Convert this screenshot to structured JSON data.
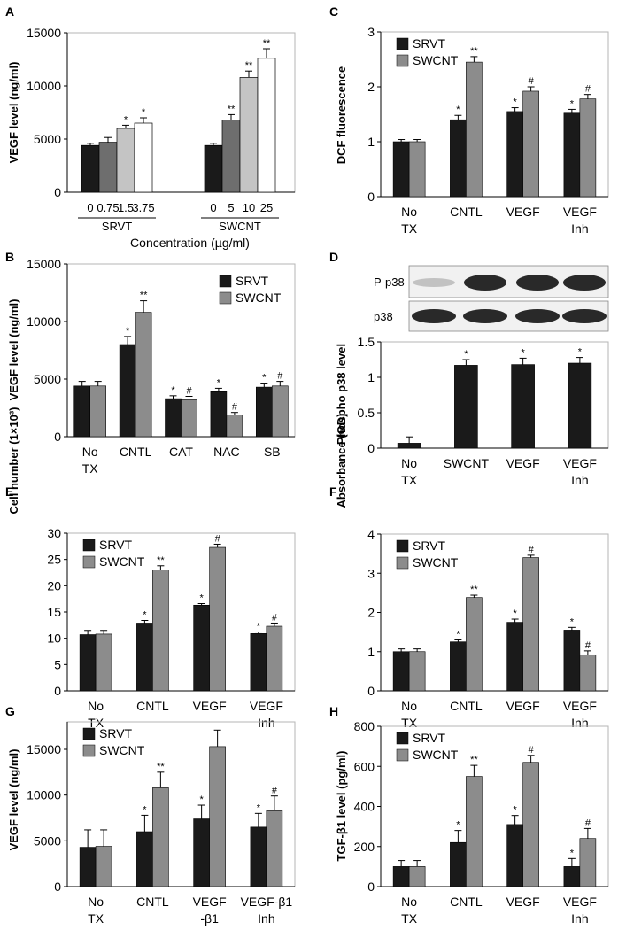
{
  "colors": {
    "srvt": "#1a1a1a",
    "swcnt": "#8c8c8c",
    "a_grays": [
      "#1a1a1a",
      "#6e6e6e",
      "#c4c4c4",
      "#ffffff"
    ]
  },
  "legend": {
    "srvt": "SRVT",
    "swcnt": "SWCNT"
  },
  "chart_data": [
    {
      "panel": "A",
      "type": "bar",
      "ylabel": "VEGF level (ng/ml)",
      "xlabel": "Concentration (µg/ml)",
      "ylim": [
        0,
        15000
      ],
      "yticks": [
        0,
        5000,
        10000,
        15000
      ],
      "groups": [
        {
          "name": "SRVT",
          "conc_labels": [
            "0",
            "0.75",
            "1.5",
            "3.75"
          ],
          "values": [
            4400,
            4700,
            6000,
            6500
          ],
          "errors": [
            200,
            450,
            300,
            500
          ],
          "marks": [
            "",
            "",
            "*",
            "*"
          ]
        },
        {
          "name": "SWCNT",
          "conc_labels": [
            "0",
            "5",
            "10",
            "25"
          ],
          "values": [
            4400,
            6800,
            10800,
            12600
          ],
          "errors": [
            200,
            500,
            600,
            900
          ],
          "marks": [
            "",
            "**",
            "**",
            "**"
          ]
        }
      ]
    },
    {
      "panel": "B",
      "type": "bar",
      "ylabel": "VEGF level (ng/ml)",
      "ylim": [
        0,
        15000
      ],
      "yticks": [
        0,
        5000,
        10000,
        15000
      ],
      "categories": [
        [
          "No",
          "TX"
        ],
        [
          "CNTL"
        ],
        [
          "CAT"
        ],
        [
          "NAC"
        ],
        [
          "SB"
        ]
      ],
      "legend_pos": "top-right",
      "series": [
        {
          "name": "SRVT",
          "values": [
            4400,
            8000,
            3300,
            3900,
            4300
          ],
          "errors": [
            400,
            700,
            250,
            300,
            350
          ],
          "marks": [
            "",
            "*",
            "*",
            "*",
            "*"
          ]
        },
        {
          "name": "SWCNT",
          "values": [
            4400,
            10800,
            3200,
            1900,
            4400
          ],
          "errors": [
            400,
            1000,
            300,
            200,
            400
          ],
          "marks": [
            "",
            "**",
            "#",
            "#",
            "#"
          ]
        }
      ]
    },
    {
      "panel": "C",
      "type": "bar",
      "ylabel": "DCF fluorescence",
      "ylim": [
        0,
        3
      ],
      "yticks": [
        0,
        1,
        2,
        3
      ],
      "categories": [
        [
          "No",
          "TX"
        ],
        [
          "CNTL"
        ],
        [
          "VEGF"
        ],
        [
          "VEGF",
          "Inh"
        ]
      ],
      "legend_pos": "top-left",
      "series": [
        {
          "name": "SRVT",
          "values": [
            1.0,
            1.4,
            1.55,
            1.52
          ],
          "errors": [
            0.04,
            0.08,
            0.07,
            0.07
          ],
          "marks": [
            "",
            "*",
            "*",
            "*"
          ]
        },
        {
          "name": "SWCNT",
          "values": [
            1.0,
            2.45,
            1.92,
            1.78
          ],
          "errors": [
            0.04,
            0.1,
            0.08,
            0.08
          ],
          "marks": [
            "",
            "**",
            "#",
            "#"
          ]
        }
      ]
    },
    {
      "panel": "D",
      "type": "bar",
      "ylabel": "Phospho p38 level",
      "ylim": [
        0,
        1.5
      ],
      "yticks": [
        0,
        0.5,
        1,
        1.5
      ],
      "blot_labels": [
        "P-p38",
        "p38"
      ],
      "categories": [
        [
          "No",
          "TX"
        ],
        [
          "SWCNT"
        ],
        [
          "VEGF"
        ],
        [
          "VEGF",
          "Inh"
        ]
      ],
      "series": [
        {
          "name": "Phospho p38",
          "values": [
            0.07,
            1.17,
            1.18,
            1.2
          ],
          "errors": [
            0.09,
            0.08,
            0.09,
            0.08
          ],
          "marks": [
            "",
            "*",
            "*",
            "*"
          ]
        }
      ]
    },
    {
      "panel": "E",
      "type": "bar",
      "ylabel": "Cell number (1×10³)",
      "ylim": [
        0,
        30
      ],
      "yticks": [
        0,
        5,
        10,
        15,
        20,
        25,
        30
      ],
      "categories": [
        [
          "No",
          "TX"
        ],
        [
          "CNTL"
        ],
        [
          "VEGF"
        ],
        [
          "VEGF",
          "Inh"
        ]
      ],
      "legend_pos": "top-left",
      "series": [
        {
          "name": "SRVT",
          "values": [
            10.7,
            12.9,
            16.3,
            10.9
          ],
          "errors": [
            0.8,
            0.5,
            0.3,
            0.3
          ],
          "marks": [
            "",
            "*",
            "*",
            "*"
          ]
        },
        {
          "name": "SWCNT",
          "values": [
            10.8,
            23.0,
            27.3,
            12.3
          ],
          "errors": [
            0.7,
            0.8,
            0.6,
            0.6
          ],
          "marks": [
            "",
            "**",
            "#",
            "#"
          ]
        }
      ]
    },
    {
      "panel": "F",
      "type": "bar",
      "ylabel": "Absorbance (OD)",
      "ylim": [
        0,
        4
      ],
      "yticks": [
        0,
        1,
        2,
        3,
        4
      ],
      "categories": [
        [
          "No",
          "TX"
        ],
        [
          "CNTL"
        ],
        [
          "VEGF"
        ],
        [
          "VEGF",
          "Inh"
        ]
      ],
      "legend_pos": "top-left",
      "series": [
        {
          "name": "SRVT",
          "values": [
            1.0,
            1.25,
            1.75,
            1.55
          ],
          "errors": [
            0.07,
            0.05,
            0.08,
            0.07
          ],
          "marks": [
            "",
            "*",
            "*",
            "*"
          ]
        },
        {
          "name": "SWCNT",
          "values": [
            1.0,
            2.38,
            3.4,
            0.92
          ],
          "errors": [
            0.07,
            0.06,
            0.06,
            0.1
          ],
          "marks": [
            "",
            "**",
            "#",
            "#"
          ]
        }
      ]
    },
    {
      "panel": "G",
      "type": "bar",
      "ylabel": "VEGF level (ng/ml)",
      "ylim": [
        0,
        18000
      ],
      "yticks": [
        0,
        5000,
        10000,
        15000
      ],
      "categories": [
        [
          "No",
          "TX"
        ],
        [
          "CNTL"
        ],
        [
          "VEGF",
          "-β1"
        ],
        [
          "VEGF-β1",
          "Inh"
        ]
      ],
      "legend_pos": "top-left",
      "series": [
        {
          "name": "SRVT",
          "values": [
            4300,
            6000,
            7400,
            6500
          ],
          "errors": [
            1900,
            1800,
            1500,
            1500
          ],
          "marks": [
            "",
            "*",
            "*",
            "*"
          ]
        },
        {
          "name": "SWCNT",
          "values": [
            4400,
            10800,
            15300,
            8300
          ],
          "errors": [
            1800,
            1700,
            1800,
            1600
          ],
          "marks": [
            "",
            "**",
            "",
            "#"
          ]
        }
      ]
    },
    {
      "panel": "H",
      "type": "bar",
      "ylabel": "TGF-β1 level (pg/ml)",
      "ylim": [
        0,
        800
      ],
      "yticks": [
        0,
        200,
        400,
        600,
        800
      ],
      "categories": [
        [
          "No",
          "TX"
        ],
        [
          "CNTL"
        ],
        [
          "VEGF"
        ],
        [
          "VEGF",
          "Inh"
        ]
      ],
      "legend_pos": "top-left",
      "series": [
        {
          "name": "SRVT",
          "values": [
            100,
            220,
            310,
            100
          ],
          "errors": [
            30,
            60,
            45,
            40
          ],
          "marks": [
            "",
            "*",
            "*",
            "*"
          ]
        },
        {
          "name": "SWCNT",
          "values": [
            100,
            550,
            620,
            240
          ],
          "errors": [
            30,
            55,
            35,
            50
          ],
          "marks": [
            "",
            "**",
            "#",
            "#"
          ]
        }
      ]
    }
  ]
}
